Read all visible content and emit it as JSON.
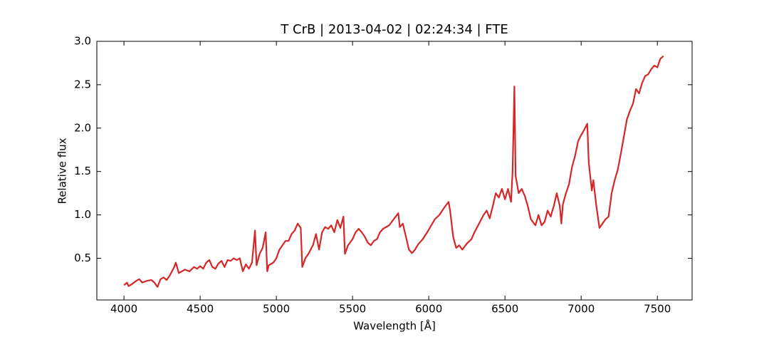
{
  "chart_data": {
    "type": "line",
    "title": "T CrB | 2013-04-02 | 02:24:34 | FTE",
    "x_label": "Wavelength [Å]",
    "y_label": "Relative flux",
    "xlim": [
      3822,
      7728
    ],
    "ylim": [
      0.02,
      3.0
    ],
    "xticks": [
      4000,
      4500,
      5000,
      5500,
      6000,
      6500,
      7000,
      7500
    ],
    "yticks": [
      0.5,
      {
        "value": 1.0,
        "label": "1.0"
      },
      1.5,
      {
        "value": 2.0,
        "label": "2.0"
      },
      2.5,
      {
        "value": 3.0,
        "label": "3.0"
      }
    ],
    "grid": false,
    "series": [
      {
        "name": "T CrB",
        "color": "#d62728",
        "x": [
          4000,
          4020,
          4030,
          4050,
          4080,
          4100,
          4120,
          4150,
          4180,
          4200,
          4220,
          4240,
          4260,
          4280,
          4300,
          4330,
          4340,
          4360,
          4380,
          4400,
          4430,
          4460,
          4480,
          4500,
          4520,
          4540,
          4560,
          4580,
          4600,
          4620,
          4640,
          4660,
          4680,
          4700,
          4720,
          4740,
          4760,
          4780,
          4800,
          4820,
          4840,
          4860,
          4870,
          4890,
          4910,
          4930,
          4940,
          4950,
          4980,
          5000,
          5020,
          5040,
          5060,
          5080,
          5100,
          5120,
          5140,
          5160,
          5170,
          5190,
          5210,
          5240,
          5260,
          5280,
          5300,
          5320,
          5340,
          5360,
          5380,
          5400,
          5420,
          5440,
          5450,
          5470,
          5500,
          5520,
          5540,
          5560,
          5580,
          5600,
          5620,
          5640,
          5660,
          5680,
          5700,
          5740,
          5770,
          5800,
          5810,
          5830,
          5850,
          5870,
          5890,
          5910,
          5930,
          5960,
          5990,
          6010,
          6040,
          6070,
          6100,
          6130,
          6140,
          6160,
          6180,
          6200,
          6220,
          6250,
          6280,
          6300,
          6330,
          6360,
          6380,
          6400,
          6420,
          6440,
          6460,
          6480,
          6500,
          6520,
          6540,
          6550,
          6562,
          6570,
          6590,
          6610,
          6630,
          6650,
          6670,
          6700,
          6720,
          6740,
          6760,
          6780,
          6800,
          6820,
          6840,
          6860,
          6870,
          6880,
          6900,
          6920,
          6940,
          6960,
          6980,
          7000,
          7020,
          7040,
          7050,
          7070,
          7080,
          7100,
          7120,
          7140,
          7160,
          7180,
          7200,
          7220,
          7240,
          7260,
          7280,
          7300,
          7320,
          7340,
          7360,
          7380,
          7400,
          7420,
          7440,
          7460,
          7480,
          7500,
          7520,
          7540
        ],
        "values": [
          0.19,
          0.22,
          0.18,
          0.2,
          0.24,
          0.26,
          0.22,
          0.24,
          0.25,
          0.22,
          0.17,
          0.26,
          0.28,
          0.25,
          0.3,
          0.4,
          0.45,
          0.33,
          0.35,
          0.37,
          0.35,
          0.4,
          0.38,
          0.41,
          0.38,
          0.45,
          0.48,
          0.4,
          0.38,
          0.44,
          0.47,
          0.4,
          0.48,
          0.47,
          0.5,
          0.48,
          0.5,
          0.35,
          0.43,
          0.38,
          0.45,
          0.82,
          0.42,
          0.55,
          0.62,
          0.8,
          0.35,
          0.42,
          0.45,
          0.5,
          0.6,
          0.65,
          0.7,
          0.7,
          0.78,
          0.82,
          0.9,
          0.85,
          0.4,
          0.5,
          0.55,
          0.65,
          0.78,
          0.6,
          0.8,
          0.86,
          0.84,
          0.88,
          0.8,
          0.94,
          0.85,
          0.98,
          0.55,
          0.65,
          0.72,
          0.8,
          0.84,
          0.8,
          0.75,
          0.68,
          0.65,
          0.7,
          0.72,
          0.8,
          0.84,
          0.88,
          0.95,
          1.02,
          0.86,
          0.9,
          0.75,
          0.6,
          0.56,
          0.6,
          0.66,
          0.72,
          0.8,
          0.86,
          0.95,
          1.0,
          1.08,
          1.15,
          1.05,
          0.75,
          0.62,
          0.65,
          0.6,
          0.67,
          0.72,
          0.8,
          0.9,
          1.0,
          1.05,
          0.96,
          1.1,
          1.25,
          1.2,
          1.3,
          1.18,
          1.3,
          1.15,
          1.5,
          2.48,
          1.45,
          1.25,
          1.3,
          1.22,
          1.1,
          0.95,
          0.88,
          1.0,
          0.88,
          0.92,
          1.05,
          0.98,
          1.1,
          1.25,
          1.1,
          0.9,
          1.12,
          1.25,
          1.35,
          1.55,
          1.68,
          1.85,
          1.92,
          1.98,
          2.05,
          1.6,
          1.28,
          1.4,
          1.1,
          0.85,
          0.9,
          0.95,
          0.98,
          1.25,
          1.4,
          1.52,
          1.7,
          1.9,
          2.1,
          2.2,
          2.28,
          2.45,
          2.4,
          2.52,
          2.6,
          2.62,
          2.68,
          2.72,
          2.7,
          2.8,
          2.83
        ]
      }
    ]
  }
}
